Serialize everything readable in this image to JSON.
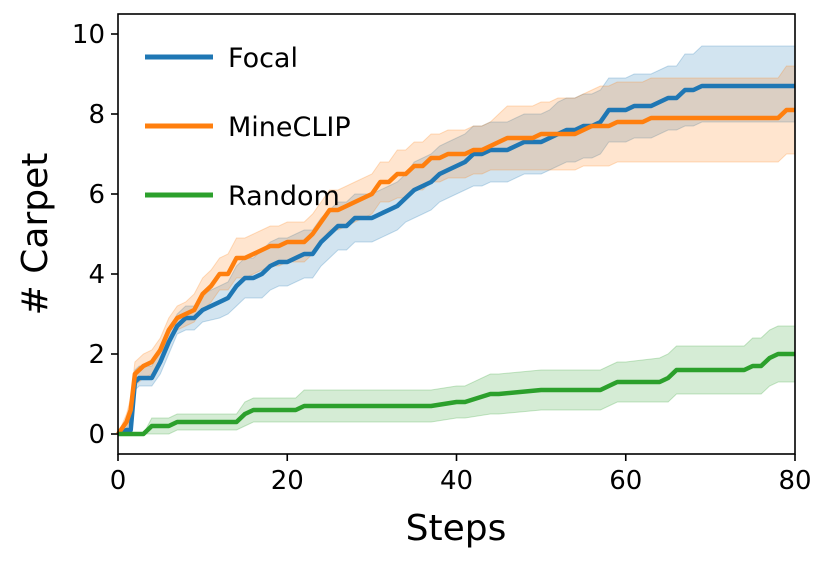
{
  "chart_data": {
    "type": "line",
    "title": "",
    "xlabel": "Steps",
    "ylabel": "# Carpet",
    "xlim": [
      0,
      80
    ],
    "ylim": [
      -0.5,
      10.5
    ],
    "xticks": [
      0,
      20,
      40,
      60,
      80
    ],
    "yticks": [
      0,
      2,
      4,
      6,
      8,
      10
    ],
    "grid": false,
    "legend_position": "top-left",
    "series": [
      {
        "name": "Focal",
        "color": "#1f77b4",
        "x": [
          0,
          1,
          1.5,
          2,
          2.5,
          4,
          5,
          6,
          7,
          8,
          9,
          10,
          12,
          13,
          14,
          15,
          16,
          17,
          18,
          19,
          20,
          21,
          22,
          23,
          24,
          25,
          26,
          27,
          28,
          29,
          30,
          31,
          32,
          33,
          34,
          35,
          36,
          37,
          38,
          39,
          40,
          41,
          42,
          43,
          44,
          45,
          46,
          47,
          48,
          49,
          50,
          51,
          52,
          53,
          54,
          55,
          56,
          57,
          58,
          59,
          60,
          61,
          62,
          63,
          64,
          65,
          66,
          67,
          68,
          69,
          70,
          72,
          74,
          76,
          78,
          80
        ],
        "y": [
          0,
          0.1,
          0.1,
          1.3,
          1.4,
          1.4,
          1.8,
          2.3,
          2.7,
          2.9,
          2.9,
          3.1,
          3.3,
          3.4,
          3.7,
          3.9,
          3.9,
          4.0,
          4.2,
          4.3,
          4.3,
          4.4,
          4.5,
          4.5,
          4.8,
          5.0,
          5.2,
          5.2,
          5.4,
          5.4,
          5.4,
          5.5,
          5.6,
          5.7,
          5.9,
          6.1,
          6.2,
          6.3,
          6.5,
          6.6,
          6.7,
          6.8,
          7.0,
          7.0,
          7.1,
          7.1,
          7.1,
          7.2,
          7.3,
          7.3,
          7.3,
          7.4,
          7.5,
          7.6,
          7.6,
          7.7,
          7.7,
          7.8,
          8.1,
          8.1,
          8.1,
          8.2,
          8.2,
          8.2,
          8.3,
          8.4,
          8.4,
          8.6,
          8.6,
          8.7,
          8.7,
          8.7,
          8.7,
          8.7,
          8.7,
          8.7
        ],
        "lower": [
          0,
          0,
          0,
          1.1,
          1.2,
          1.2,
          1.5,
          2.0,
          2.5,
          2.6,
          2.6,
          2.8,
          2.9,
          3.0,
          3.2,
          3.4,
          3.4,
          3.4,
          3.6,
          3.7,
          3.7,
          3.8,
          3.9,
          3.9,
          4.2,
          4.4,
          4.6,
          4.6,
          4.8,
          4.8,
          4.8,
          4.9,
          5.0,
          5.1,
          5.3,
          5.4,
          5.5,
          5.6,
          5.8,
          5.9,
          6.0,
          6.1,
          6.2,
          6.2,
          6.3,
          6.3,
          6.3,
          6.4,
          6.5,
          6.5,
          6.5,
          6.6,
          6.7,
          6.8,
          6.8,
          6.9,
          6.9,
          7.0,
          7.3,
          7.3,
          7.3,
          7.4,
          7.4,
          7.4,
          7.5,
          7.6,
          7.6,
          7.7,
          7.7,
          7.8,
          7.8,
          7.8,
          7.8,
          7.8,
          7.8,
          7.8
        ],
        "upper": [
          0,
          0.3,
          0.3,
          1.6,
          1.7,
          1.7,
          2.1,
          2.6,
          3.0,
          3.2,
          3.2,
          3.5,
          3.7,
          3.8,
          4.2,
          4.4,
          4.4,
          4.6,
          4.8,
          4.9,
          4.9,
          5.0,
          5.1,
          5.1,
          5.4,
          5.6,
          5.8,
          5.8,
          6.0,
          6.0,
          6.0,
          6.1,
          6.2,
          6.3,
          6.5,
          6.8,
          6.9,
          7.0,
          7.2,
          7.3,
          7.4,
          7.5,
          7.7,
          7.7,
          7.8,
          7.8,
          7.8,
          7.9,
          8.0,
          8.0,
          8.0,
          8.1,
          8.3,
          8.4,
          8.4,
          8.5,
          8.5,
          8.6,
          8.9,
          8.9,
          8.9,
          9.0,
          9.0,
          9.0,
          9.1,
          9.2,
          9.2,
          9.5,
          9.5,
          9.7,
          9.7,
          9.7,
          9.7,
          9.7,
          9.7,
          9.7
        ]
      },
      {
        "name": "MineCLIP",
        "color": "#ff7f0e",
        "x": [
          0,
          1,
          1.5,
          2,
          3,
          4,
          5,
          6,
          7,
          8,
          9,
          10,
          11,
          12,
          13,
          14,
          15,
          16,
          17,
          18,
          19,
          20,
          21,
          22,
          23,
          24,
          25,
          26,
          27,
          28,
          29,
          30,
          31,
          32,
          33,
          34,
          35,
          36,
          37,
          38,
          39,
          40,
          41,
          42,
          43,
          44,
          45,
          46,
          47,
          48,
          49,
          50,
          51,
          52,
          53,
          54,
          55,
          56,
          57,
          58,
          59,
          60,
          61,
          62,
          63,
          64,
          66,
          68,
          70,
          72,
          74,
          76,
          78,
          79,
          80
        ],
        "y": [
          0,
          0.3,
          0.6,
          1.5,
          1.7,
          1.8,
          2.1,
          2.6,
          2.9,
          3.0,
          3.1,
          3.5,
          3.7,
          4.0,
          4.0,
          4.4,
          4.4,
          4.5,
          4.6,
          4.7,
          4.7,
          4.8,
          4.8,
          4.8,
          5.0,
          5.3,
          5.6,
          5.6,
          5.7,
          5.8,
          5.9,
          6.0,
          6.3,
          6.3,
          6.5,
          6.5,
          6.7,
          6.7,
          6.9,
          6.9,
          7.0,
          7.0,
          7.0,
          7.1,
          7.1,
          7.2,
          7.3,
          7.4,
          7.4,
          7.4,
          7.4,
          7.5,
          7.5,
          7.5,
          7.5,
          7.5,
          7.6,
          7.7,
          7.7,
          7.7,
          7.8,
          7.8,
          7.8,
          7.8,
          7.9,
          7.9,
          7.9,
          7.9,
          7.9,
          7.9,
          7.9,
          7.9,
          7.9,
          8.1,
          8.1
        ],
        "lower": [
          0,
          0.1,
          0.4,
          1.2,
          1.4,
          1.5,
          1.8,
          2.3,
          2.6,
          2.7,
          2.8,
          3.1,
          3.3,
          3.6,
          3.6,
          3.9,
          3.9,
          4.0,
          4.1,
          4.2,
          4.2,
          4.3,
          4.3,
          4.3,
          4.5,
          4.8,
          5.1,
          5.1,
          5.2,
          5.3,
          5.4,
          5.5,
          5.8,
          5.8,
          5.9,
          5.9,
          6.1,
          6.1,
          6.3,
          6.3,
          6.4,
          6.4,
          6.4,
          6.5,
          6.5,
          6.6,
          6.6,
          6.6,
          6.6,
          6.6,
          6.6,
          6.6,
          6.6,
          6.6,
          6.6,
          6.6,
          6.7,
          6.7,
          6.7,
          6.7,
          6.8,
          6.8,
          6.8,
          6.8,
          6.8,
          6.8,
          6.8,
          6.8,
          6.8,
          6.8,
          6.8,
          6.8,
          6.8,
          7.0,
          7.0
        ],
        "upper": [
          0,
          0.5,
          0.9,
          1.8,
          2.0,
          2.1,
          2.4,
          2.9,
          3.2,
          3.3,
          3.5,
          3.9,
          4.1,
          4.4,
          4.5,
          4.9,
          4.9,
          5.0,
          5.1,
          5.2,
          5.2,
          5.3,
          5.3,
          5.3,
          5.5,
          5.8,
          6.1,
          6.1,
          6.2,
          6.3,
          6.4,
          6.5,
          6.8,
          6.8,
          7.1,
          7.1,
          7.3,
          7.3,
          7.5,
          7.5,
          7.6,
          7.6,
          7.6,
          7.7,
          7.7,
          7.8,
          8.0,
          8.2,
          8.2,
          8.2,
          8.2,
          8.3,
          8.3,
          8.4,
          8.4,
          8.4,
          8.5,
          8.6,
          8.7,
          8.7,
          8.8,
          8.8,
          8.8,
          8.8,
          8.9,
          8.9,
          8.9,
          8.9,
          8.9,
          8.9,
          8.9,
          8.9,
          8.9,
          9.2,
          9.2
        ]
      },
      {
        "name": "Random",
        "color": "#2ca02c",
        "x": [
          0,
          3,
          4,
          6,
          7,
          10,
          14,
          15,
          16,
          20,
          21,
          22,
          30,
          36,
          37,
          40,
          41,
          44,
          45,
          50,
          55,
          56,
          57,
          58,
          59,
          60,
          64,
          65,
          66,
          70,
          73,
          74,
          75,
          76,
          77,
          78,
          80
        ],
        "y": [
          0,
          0,
          0.2,
          0.2,
          0.3,
          0.3,
          0.3,
          0.5,
          0.6,
          0.6,
          0.6,
          0.7,
          0.7,
          0.7,
          0.7,
          0.8,
          0.8,
          1.0,
          1.0,
          1.1,
          1.1,
          1.1,
          1.1,
          1.2,
          1.3,
          1.3,
          1.3,
          1.4,
          1.6,
          1.6,
          1.6,
          1.6,
          1.7,
          1.7,
          1.9,
          2.0,
          2.0
        ],
        "lower": [
          0,
          0,
          0,
          0,
          0.1,
          0.1,
          0.1,
          0.2,
          0.3,
          0.3,
          0.3,
          0.3,
          0.3,
          0.3,
          0.3,
          0.4,
          0.4,
          0.5,
          0.5,
          0.6,
          0.6,
          0.6,
          0.6,
          0.7,
          0.8,
          0.8,
          0.8,
          0.8,
          1.0,
          1.0,
          1.0,
          1.0,
          1.0,
          1.0,
          1.2,
          1.3,
          1.3
        ],
        "upper": [
          0,
          0,
          0.4,
          0.4,
          0.5,
          0.5,
          0.5,
          0.8,
          0.9,
          0.9,
          0.9,
          1.1,
          1.1,
          1.1,
          1.1,
          1.2,
          1.2,
          1.5,
          1.5,
          1.6,
          1.6,
          1.6,
          1.6,
          1.7,
          1.8,
          1.8,
          1.9,
          2.0,
          2.2,
          2.2,
          2.2,
          2.2,
          2.4,
          2.4,
          2.6,
          2.7,
          2.7
        ]
      }
    ]
  }
}
